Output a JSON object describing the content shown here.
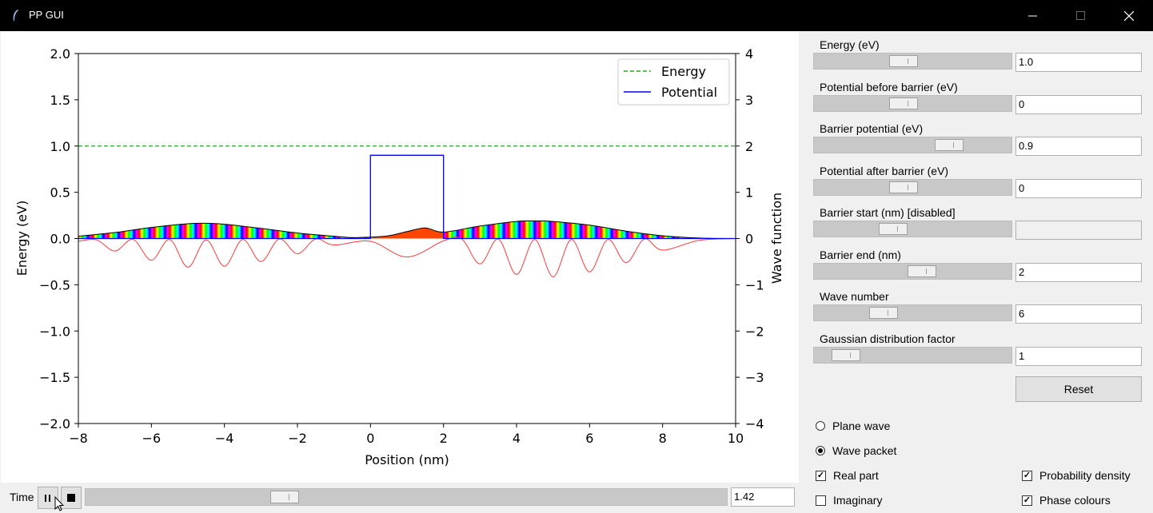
{
  "window": {
    "title": "PP GUI"
  },
  "chart_data": {
    "type": "line",
    "xlabel": "Position (nm)",
    "ylabel": "Energy (eV)",
    "y2label": "Wave function",
    "xlim": [
      -8,
      10
    ],
    "ylim": [
      -2.0,
      2.0
    ],
    "y2lim": [
      -4,
      4
    ],
    "xticks": [
      "−8",
      "−6",
      "−4",
      "−2",
      "0",
      "2",
      "4",
      "6",
      "8",
      "10"
    ],
    "yticks": [
      "−2.0",
      "−1.5",
      "−1.0",
      "−0.5",
      "0.0",
      "0.5",
      "1.0",
      "1.5",
      "2.0"
    ],
    "y2ticks": [
      "−4",
      "−3",
      "−2",
      "−1",
      "0",
      "1",
      "2",
      "3",
      "4"
    ],
    "legend_placement": "top-right",
    "legend": [
      "Energy",
      "Potential"
    ],
    "energy": {
      "name": "Energy",
      "y": 1.0,
      "color": "#2ca02c",
      "style": "dashed"
    },
    "potential": {
      "name": "Potential",
      "color": "#0000ff",
      "x": [
        -8,
        0,
        0,
        2,
        2,
        10
      ],
      "y": [
        0,
        0,
        0.9,
        0.9,
        0,
        0
      ]
    },
    "probability_density": {
      "color": "#000000",
      "fill": "phase colours",
      "x": [
        -8,
        -7,
        -6,
        -5,
        -4.6,
        -4,
        -3,
        -2,
        -1,
        -0.5,
        0,
        0.5,
        1,
        1.5,
        2,
        3,
        4,
        4.6,
        5,
        6,
        7,
        8,
        9,
        10
      ],
      "y": [
        0.05,
        0.13,
        0.24,
        0.32,
        0.33,
        0.31,
        0.22,
        0.12,
        0.05,
        0.02,
        0.03,
        0.06,
        0.15,
        0.23,
        0.14,
        0.27,
        0.37,
        0.38,
        0.37,
        0.29,
        0.16,
        0.06,
        0.01,
        0.0
      ]
    },
    "real_part": {
      "color": "#ff3b3b",
      "x": [
        -8,
        -7.5,
        -7,
        -6.5,
        -6,
        -5.5,
        -5,
        -4.5,
        -4,
        -3.5,
        -3,
        -2.5,
        -2,
        -1.5,
        -1,
        0,
        1,
        2,
        2.5,
        3,
        3.5,
        4,
        4.5,
        5,
        5.5,
        6,
        6.5,
        7,
        7.5,
        8,
        9,
        10
      ],
      "y": [
        -0.06,
        -0.03,
        -0.27,
        -0.02,
        -0.47,
        -0.02,
        -0.62,
        -0.03,
        -0.6,
        -0.02,
        -0.5,
        -0.01,
        -0.33,
        -0.01,
        -0.14,
        -0.06,
        -0.4,
        -0.05,
        -0.01,
        -0.55,
        -0.01,
        -0.78,
        -0.02,
        -0.83,
        -0.02,
        -0.72,
        -0.02,
        -0.52,
        -0.01,
        -0.25,
        -0.04,
        0.0
      ]
    }
  },
  "time": {
    "label": "Time",
    "value": "1.42",
    "position": 0.3
  },
  "controls": [
    {
      "label": "Energy (eV)",
      "value": "1.0",
      "position": 0.44,
      "disabled": false
    },
    {
      "label": "Potential before barrier (eV)",
      "value": "0",
      "position": 0.44,
      "disabled": false
    },
    {
      "label": "Barrier potential (eV)",
      "value": "0.9",
      "position": 0.71,
      "disabled": false
    },
    {
      "label": "Potential after barrier (eV)",
      "value": "0",
      "position": 0.44,
      "disabled": false
    },
    {
      "label": "Barrier start (nm) [disabled]",
      "value": "",
      "position": 0.38,
      "disabled": true
    },
    {
      "label": "Barrier end (nm)",
      "value": "2",
      "position": 0.55,
      "disabled": false
    },
    {
      "label": "Wave number",
      "value": "6",
      "position": 0.32,
      "disabled": false
    },
    {
      "label": "Gaussian distribution factor",
      "value": "1",
      "position": 0.1,
      "disabled": false
    }
  ],
  "reset_label": "Reset",
  "mode_options": [
    {
      "label": "Plane wave",
      "selected": false
    },
    {
      "label": "Wave packet",
      "selected": true
    }
  ],
  "display_options": [
    {
      "label": "Real part",
      "checked": true
    },
    {
      "label": "Probability density",
      "checked": true
    },
    {
      "label": "Imaginary",
      "checked": false
    },
    {
      "label": "Phase colours",
      "checked": true
    }
  ]
}
